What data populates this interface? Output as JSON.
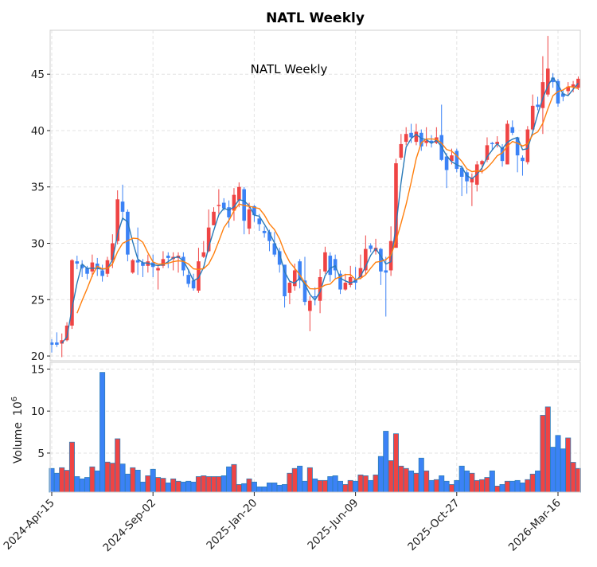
{
  "chart_data": {
    "type": "candlestick",
    "title": "NATL  Weekly",
    "subtitle": "NATL  Weekly",
    "ylabel_volume": "Volume",
    "ylabel_volume_exponent": "10",
    "ylabel_volume_exponent_power": "6",
    "price_ylim": [
      19.58,
      48.9
    ],
    "price_yticks": [
      20,
      25,
      30,
      35,
      40,
      45
    ],
    "volume_ylim": [
      0.35,
      15.8
    ],
    "volume_yticks": [
      5,
      10,
      15
    ],
    "xtick_labels": [
      {
        "index": 0,
        "label": "2024-Apr-15"
      },
      {
        "index": 20,
        "label": "2024-Sep-02"
      },
      {
        "index": 40,
        "label": "2025-Jan-20"
      },
      {
        "index": 60,
        "label": "2025-Jun-09"
      },
      {
        "index": 80,
        "label": "2025-Oct-27"
      },
      {
        "index": 100,
        "label": "2026-Mar-16"
      }
    ],
    "grid": true,
    "mav": [
      3,
      6
    ],
    "colors": {
      "up": "#ef4444",
      "down": "#3b82f6",
      "volume_edge": "#2f7fb8",
      "mav_short": "#2a7ab8",
      "mav_long": "#ff7f0e",
      "grid": "#e3e3e3",
      "frame": "#cfcfcf"
    },
    "ohlc": [
      [
        21.2,
        21.5,
        20.3,
        21.0
      ],
      [
        21.2,
        22.1,
        20.8,
        21.0
      ],
      [
        21.1,
        22.0,
        19.9,
        21.4
      ],
      [
        21.4,
        23.0,
        21.3,
        22.7
      ],
      [
        22.7,
        28.6,
        22.4,
        28.5
      ],
      [
        28.4,
        28.9,
        27.7,
        28.2
      ],
      [
        28.1,
        28.5,
        27.0,
        27.8
      ],
      [
        27.8,
        28.0,
        26.8,
        27.3
      ],
      [
        27.5,
        29.0,
        27.0,
        28.3
      ],
      [
        28.2,
        28.7,
        27.1,
        27.7
      ],
      [
        27.6,
        28.1,
        26.6,
        27.1
      ],
      [
        27.3,
        28.8,
        27.0,
        28.5
      ],
      [
        28.5,
        30.8,
        27.8,
        30.0
      ],
      [
        30.2,
        34.7,
        29.9,
        33.9
      ],
      [
        33.7,
        35.2,
        32.0,
        32.8
      ],
      [
        32.8,
        33.0,
        28.4,
        29.0
      ],
      [
        27.4,
        28.6,
        27.3,
        28.5
      ],
      [
        28.5,
        31.4,
        27.2,
        28.3
      ],
      [
        28.3,
        28.6,
        27.0,
        28.0
      ],
      [
        28.0,
        29.0,
        27.4,
        28.4
      ],
      [
        28.3,
        29.0,
        27.0,
        27.9
      ],
      [
        27.6,
        28.0,
        25.9,
        27.8
      ],
      [
        28.0,
        29.3,
        27.8,
        28.6
      ],
      [
        28.9,
        29.2,
        27.8,
        28.7
      ],
      [
        28.6,
        29.2,
        27.6,
        28.8
      ],
      [
        28.7,
        29.2,
        27.4,
        28.9
      ],
      [
        28.8,
        29.2,
        27.1,
        27.6
      ],
      [
        27.2,
        27.7,
        26.1,
        26.4
      ],
      [
        26.7,
        27.3,
        25.8,
        26.0
      ],
      [
        25.8,
        29.6,
        25.6,
        28.4
      ],
      [
        28.8,
        30.2,
        28.7,
        29.2
      ],
      [
        29.3,
        33.0,
        29.2,
        31.4
      ],
      [
        31.6,
        33.2,
        31.6,
        32.8
      ],
      [
        33.3,
        34.8,
        32.6,
        33.4
      ],
      [
        33.6,
        34.0,
        32.9,
        33.1
      ],
      [
        33.2,
        33.8,
        31.4,
        32.3
      ],
      [
        32.9,
        34.9,
        32.0,
        34.3
      ],
      [
        33.8,
        35.4,
        33.2,
        35.0
      ],
      [
        34.8,
        35.0,
        30.8,
        32.0
      ],
      [
        31.3,
        33.6,
        30.8,
        33.0
      ],
      [
        33.3,
        33.4,
        31.9,
        32.5
      ],
      [
        32.2,
        32.6,
        31.1,
        31.7
      ],
      [
        31.1,
        31.5,
        30.5,
        30.9
      ],
      [
        31.0,
        31.2,
        29.3,
        30.2
      ],
      [
        30.0,
        31.0,
        28.8,
        29.0
      ],
      [
        29.3,
        29.6,
        27.4,
        28.1
      ],
      [
        28.1,
        28.1,
        24.3,
        25.3
      ],
      [
        25.6,
        26.7,
        24.6,
        26.5
      ],
      [
        26.2,
        28.2,
        25.8,
        27.6
      ],
      [
        28.4,
        28.6,
        26.0,
        26.7
      ],
      [
        26.7,
        28.8,
        24.5,
        24.8
      ],
      [
        24.0,
        25.3,
        22.2,
        24.9
      ],
      [
        25.3,
        26.1,
        24.5,
        25.2
      ],
      [
        24.9,
        27.7,
        23.8,
        27.0
      ],
      [
        27.5,
        29.7,
        27.3,
        29.2
      ],
      [
        28.9,
        29.2,
        26.6,
        27.2
      ],
      [
        28.6,
        29.0,
        26.9,
        27.6
      ],
      [
        27.3,
        27.6,
        25.5,
        25.9
      ],
      [
        25.9,
        27.3,
        25.8,
        26.5
      ],
      [
        26.3,
        28.0,
        26.1,
        27.0
      ],
      [
        26.8,
        27.9,
        25.9,
        26.5
      ],
      [
        27.0,
        29.0,
        26.8,
        27.8
      ],
      [
        27.6,
        30.7,
        27.2,
        29.5
      ],
      [
        29.8,
        30.0,
        29.2,
        29.5
      ],
      [
        29.3,
        30.4,
        29.0,
        29.6
      ],
      [
        29.5,
        29.6,
        26.3,
        27.5
      ],
      [
        27.6,
        28.8,
        23.5,
        27.4
      ],
      [
        27.6,
        31.5,
        27.1,
        30.2
      ],
      [
        29.6,
        37.5,
        29.6,
        37.1
      ],
      [
        37.6,
        39.7,
        37.4,
        38.8
      ],
      [
        39.0,
        40.3,
        38.7,
        39.7
      ],
      [
        39.8,
        40.6,
        38.9,
        39.4
      ],
      [
        39.0,
        40.6,
        38.7,
        39.9
      ],
      [
        39.8,
        40.1,
        38.2,
        38.6
      ],
      [
        38.9,
        40.3,
        38.6,
        39.1
      ],
      [
        39.1,
        39.6,
        38.5,
        38.9
      ],
      [
        38.9,
        40.3,
        38.8,
        39.4
      ],
      [
        39.6,
        42.3,
        37.3,
        37.4
      ],
      [
        37.7,
        38.0,
        34.9,
        36.5
      ],
      [
        37.3,
        38.4,
        37.0,
        37.8
      ],
      [
        38.2,
        38.4,
        36.3,
        36.6
      ],
      [
        36.7,
        36.9,
        34.2,
        35.9
      ],
      [
        36.3,
        36.5,
        34.4,
        35.5
      ],
      [
        35.4,
        36.2,
        33.3,
        35.8
      ],
      [
        35.2,
        37.3,
        34.6,
        37.0
      ],
      [
        37.0,
        37.4,
        36.2,
        37.3
      ],
      [
        37.4,
        39.4,
        37.2,
        38.7
      ],
      [
        38.9,
        39.0,
        38.3,
        38.8
      ],
      [
        38.8,
        39.5,
        38.5,
        39.0
      ],
      [
        38.5,
        38.8,
        36.8,
        37.3
      ],
      [
        37.0,
        40.9,
        37.0,
        40.6
      ],
      [
        40.3,
        40.9,
        39.6,
        39.8
      ],
      [
        39.4,
        39.4,
        36.3,
        37.8
      ],
      [
        37.6,
        37.8,
        36.0,
        37.3
      ],
      [
        37.2,
        40.4,
        37.0,
        40.1
      ],
      [
        40.1,
        43.2,
        40.0,
        42.2
      ],
      [
        42.3,
        43.0,
        41.8,
        42.1
      ],
      [
        42.0,
        46.6,
        39.7,
        44.3
      ],
      [
        43.2,
        48.4,
        43.0,
        45.5
      ],
      [
        44.7,
        45.1,
        43.8,
        44.3
      ],
      [
        44.4,
        44.6,
        42.1,
        42.4
      ],
      [
        43.3,
        43.6,
        42.6,
        43.0
      ],
      [
        43.5,
        44.3,
        43.1,
        43.9
      ],
      [
        43.9,
        44.4,
        43.4,
        44.1
      ],
      [
        43.8,
        44.8,
        43.6,
        44.6
      ]
    ],
    "volume": [
      3.17,
      2.6,
      3.26,
      2.95,
      6.3,
      2.2,
      1.93,
      2.1,
      3.36,
      2.88,
      14.6,
      3.93,
      3.8,
      6.7,
      3.7,
      2.5,
      3.26,
      2.97,
      1.55,
      2.3,
      3.07,
      2.1,
      2.0,
      1.45,
      1.93,
      1.65,
      1.55,
      1.65,
      1.55,
      2.2,
      2.3,
      2.2,
      2.2,
      2.2,
      2.3,
      3.36,
      3.64,
      1.26,
      1.36,
      1.93,
      1.55,
      0.98,
      0.98,
      1.45,
      1.45,
      1.17,
      1.26,
      2.6,
      3.17,
      3.45,
      1.65,
      3.26,
      1.93,
      1.74,
      1.74,
      2.2,
      2.3,
      1.65,
      1.26,
      1.74,
      1.65,
      2.4,
      2.3,
      1.74,
      2.4,
      4.6,
      7.6,
      4.1,
      7.3,
      3.45,
      3.17,
      2.88,
      2.6,
      4.4,
      2.88,
      1.74,
      1.84,
      2.3,
      1.65,
      1.26,
      1.74,
      3.45,
      2.88,
      2.6,
      1.74,
      1.84,
      2.1,
      2.88,
      1.07,
      1.26,
      1.65,
      1.65,
      1.74,
      1.45,
      1.84,
      2.5,
      2.88,
      9.5,
      10.5,
      5.7,
      7.1,
      5.5,
      6.8,
      3.9,
      3.17
    ]
  }
}
